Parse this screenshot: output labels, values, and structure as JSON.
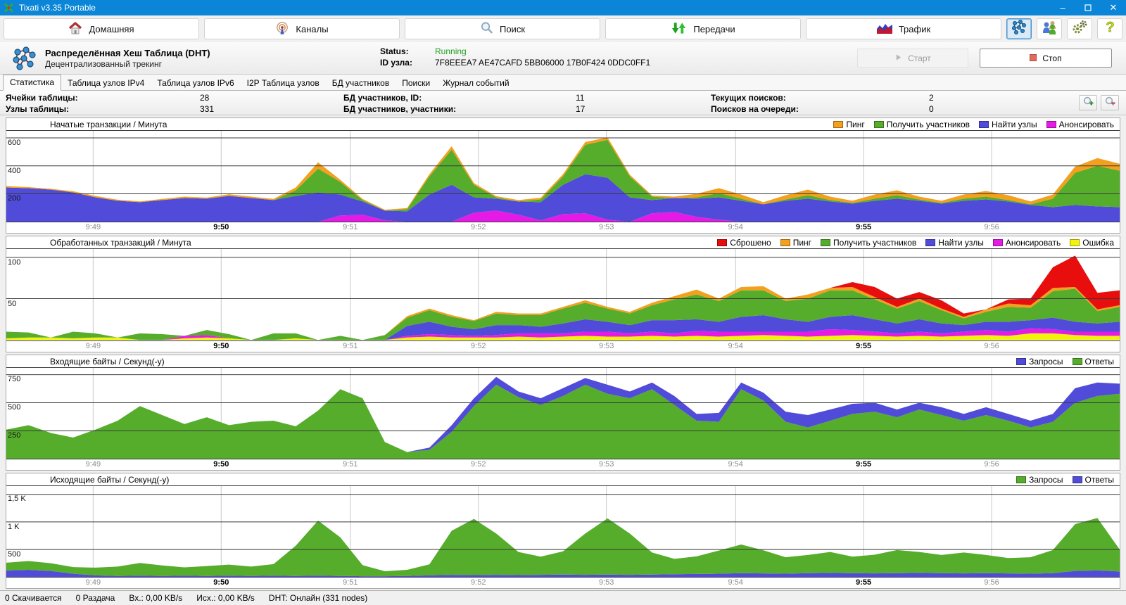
{
  "window": {
    "title": "Tixati v3.35 Portable",
    "minimize": "–",
    "close": "✕"
  },
  "toolbar": {
    "buttons": [
      {
        "label": "Домашняя",
        "icon": "home-icon"
      },
      {
        "label": "Каналы",
        "icon": "broadcast-icon"
      },
      {
        "label": "Поиск",
        "icon": "search-icon"
      },
      {
        "label": "Передачи",
        "icon": "transfer-arrows-icon"
      },
      {
        "label": "Трафик",
        "icon": "traffic-graph-icon"
      }
    ],
    "icon_buttons": [
      {
        "icon": "dht-network-icon",
        "selected": true
      },
      {
        "icon": "users-icon",
        "selected": false
      },
      {
        "icon": "settings-gears-icon",
        "selected": false
      },
      {
        "icon": "help-icon",
        "selected": false
      }
    ]
  },
  "dht_header": {
    "title": "Распределённая Хеш Таблица (DHT)",
    "subtitle": "Децентрализованный трекинг",
    "status_label": "Status:",
    "status_value": "Running",
    "status_color": "#1f9e1f",
    "node_id_label": "ID узла:",
    "node_id_value": "7F8EEEA7 AE47CAFD 5BB06000 17B0F424 0DDC0FF1",
    "start_label": "Старт",
    "stop_label": "Стоп"
  },
  "tabs": [
    {
      "label": "Статистика",
      "selected": true
    },
    {
      "label": "Таблица узлов IPv4",
      "selected": false
    },
    {
      "label": "Таблица узлов IPv6",
      "selected": false
    },
    {
      "label": "I2P Таблица узлов",
      "selected": false
    },
    {
      "label": "БД участников",
      "selected": false
    },
    {
      "label": "Поиски",
      "selected": false
    },
    {
      "label": "Журнал событий",
      "selected": false
    }
  ],
  "stats": {
    "rows": [
      {
        "cells": [
          {
            "label": "Ячейки таблицы:",
            "value": "28"
          },
          {
            "label": "БД участников, ID:",
            "value": "11"
          },
          {
            "label": "Текущих поисков:",
            "value": "2"
          }
        ]
      },
      {
        "cells": [
          {
            "label": "Узлы таблицы:",
            "value": "331"
          },
          {
            "label": "БД участников, участники:",
            "value": "17"
          },
          {
            "label": "Поисков на очереди:",
            "value": "0"
          }
        ]
      }
    ]
  },
  "time_axis": {
    "ticks": [
      {
        "pos": 78,
        "label": "9:49",
        "bold": false
      },
      {
        "pos": 193,
        "label": "9:50",
        "bold": true
      },
      {
        "pos": 309,
        "label": "9:51",
        "bold": false
      },
      {
        "pos": 424,
        "label": "9:52",
        "bold": false
      },
      {
        "pos": 539,
        "label": "9:53",
        "bold": false
      },
      {
        "pos": 655,
        "label": "9:54",
        "bold": false
      },
      {
        "pos": 770,
        "label": "9:55",
        "bold": true
      },
      {
        "pos": 885,
        "label": "9:56",
        "bold": false
      }
    ]
  },
  "chart_data": [
    {
      "type": "area",
      "title": "Начатые транзакции / Минута",
      "ymax": 650,
      "ygrid": [
        {
          "v": 600,
          "label": "600"
        },
        {
          "v": 400,
          "label": "400"
        },
        {
          "v": 200,
          "label": "200"
        }
      ],
      "series": [
        {
          "name": "Анонсировать",
          "color": "#E61AE6",
          "values": [
            0,
            0,
            0,
            0,
            0,
            0,
            0,
            0,
            0,
            0,
            0,
            0,
            0,
            0,
            0,
            45,
            50,
            10,
            0,
            0,
            0,
            65,
            80,
            50,
            10,
            55,
            60,
            15,
            0,
            60,
            70,
            35,
            15,
            0,
            0,
            0,
            0,
            0,
            0,
            0,
            0,
            0,
            0,
            0,
            0,
            0,
            0,
            0,
            0,
            0,
            0
          ]
        },
        {
          "name": "Найти узлы",
          "color": "#504CD9",
          "values": [
            245,
            240,
            230,
            210,
            175,
            150,
            140,
            155,
            170,
            165,
            185,
            170,
            155,
            185,
            210,
            150,
            95,
            70,
            75,
            195,
            265,
            110,
            85,
            95,
            130,
            210,
            280,
            300,
            175,
            95,
            100,
            130,
            160,
            150,
            125,
            150,
            165,
            145,
            130,
            150,
            165,
            150,
            130,
            150,
            160,
            145,
            120,
            105,
            120,
            110,
            105
          ]
        },
        {
          "name": "Получить участников",
          "color": "#55AD2B",
          "values": [
            0,
            0,
            0,
            0,
            0,
            0,
            0,
            0,
            0,
            0,
            0,
            0,
            0,
            40,
            170,
            90,
            10,
            0,
            15,
            130,
            250,
            90,
            10,
            0,
            20,
            60,
            210,
            270,
            150,
            25,
            0,
            10,
            30,
            15,
            0,
            10,
            25,
            10,
            5,
            15,
            25,
            10,
            5,
            15,
            20,
            10,
            5,
            60,
            230,
            290,
            260
          ]
        },
        {
          "name": "Пинг",
          "color": "#F2A01E",
          "values": [
            10,
            8,
            6,
            8,
            10,
            8,
            6,
            8,
            10,
            8,
            12,
            10,
            8,
            20,
            45,
            15,
            8,
            6,
            8,
            15,
            25,
            12,
            8,
            10,
            12,
            15,
            20,
            18,
            12,
            8,
            10,
            25,
            35,
            30,
            15,
            30,
            40,
            25,
            15,
            30,
            35,
            20,
            15,
            30,
            40,
            35,
            20,
            30,
            45,
            55,
            50
          ]
        }
      ]
    },
    {
      "type": "area",
      "title": "Обработанных транзакций / Минута",
      "ymax": 110,
      "ygrid": [
        {
          "v": 100,
          "label": "100"
        },
        {
          "v": 50,
          "label": "50"
        }
      ],
      "series": [
        {
          "name": "Ошибка",
          "color": "#F2F20C",
          "values": [
            2,
            3,
            3,
            2,
            3,
            3,
            0,
            0,
            2,
            3,
            2,
            0,
            0,
            2,
            0,
            0,
            0,
            0,
            3,
            4,
            3,
            3,
            3,
            4,
            3,
            4,
            5,
            4,
            4,
            5,
            4,
            5,
            4,
            5,
            6,
            5,
            4,
            5,
            6,
            5,
            4,
            5,
            4,
            5,
            6,
            5,
            8,
            8,
            6,
            5,
            5
          ]
        },
        {
          "name": "Анонсировать",
          "color": "#E61AE6",
          "values": [
            0,
            0,
            0,
            0,
            0,
            0,
            0,
            0,
            3,
            3,
            0,
            0,
            0,
            0,
            0,
            0,
            0,
            0,
            2,
            3,
            3,
            2,
            3,
            4,
            5,
            4,
            5,
            6,
            4,
            5,
            4,
            6,
            6,
            5,
            4,
            5,
            6,
            8,
            6,
            5,
            4,
            5,
            4,
            5,
            6,
            5,
            6,
            5,
            4,
            5,
            5
          ]
        },
        {
          "name": "Найти узлы",
          "color": "#504CD9",
          "values": [
            0,
            0,
            0,
            0,
            0,
            0,
            0,
            0,
            0,
            0,
            0,
            0,
            0,
            0,
            0,
            0,
            0,
            0,
            12,
            15,
            10,
            8,
            12,
            10,
            8,
            12,
            15,
            12,
            10,
            14,
            16,
            14,
            12,
            18,
            20,
            15,
            12,
            15,
            18,
            15,
            12,
            15,
            12,
            8,
            10,
            12,
            10,
            14,
            12,
            10,
            12
          ]
        },
        {
          "name": "Получить участников",
          "color": "#55AD2B",
          "values": [
            8,
            6,
            0,
            8,
            5,
            0,
            8,
            7,
            0,
            6,
            5,
            0,
            8,
            6,
            0,
            5,
            0,
            6,
            10,
            14,
            12,
            10,
            14,
            12,
            14,
            18,
            20,
            16,
            14,
            18,
            25,
            30,
            25,
            32,
            30,
            22,
            28,
            32,
            30,
            24,
            18,
            22,
            16,
            8,
            12,
            18,
            15,
            32,
            40,
            15,
            18
          ]
        },
        {
          "name": "Пинг",
          "color": "#F2A01E",
          "values": [
            0,
            0,
            0,
            0,
            0,
            0,
            0,
            0,
            0,
            0,
            0,
            0,
            0,
            0,
            0,
            0,
            0,
            0,
            2,
            2,
            2,
            1,
            2,
            2,
            2,
            2,
            3,
            2,
            2,
            3,
            4,
            6,
            3,
            4,
            5,
            3,
            5,
            3,
            4,
            3,
            2,
            3,
            2,
            2,
            3,
            4,
            3,
            4,
            2,
            2,
            2
          ]
        },
        {
          "name": "Сброшено",
          "color": "#E80E0E",
          "values": [
            0,
            0,
            0,
            0,
            0,
            0,
            0,
            0,
            0,
            0,
            0,
            0,
            0,
            0,
            0,
            0,
            0,
            0,
            0,
            0,
            0,
            0,
            0,
            0,
            0,
            0,
            0,
            0,
            0,
            0,
            0,
            0,
            0,
            0,
            0,
            0,
            0,
            0,
            6,
            12,
            10,
            8,
            10,
            4,
            0,
            5,
            8,
            25,
            38,
            20,
            18
          ]
        }
      ]
    },
    {
      "type": "area",
      "title": "Входящие байты / Секунд(-у)",
      "ymax": 810,
      "ygrid": [
        {
          "v": 750,
          "label": "750"
        },
        {
          "v": 500,
          "label": "500"
        },
        {
          "v": 250,
          "label": "250"
        }
      ],
      "series": [
        {
          "name": "Ответы",
          "color": "#55AD2B",
          "values": [
            260,
            300,
            230,
            190,
            260,
            340,
            470,
            390,
            310,
            370,
            300,
            330,
            340,
            290,
            430,
            620,
            540,
            150,
            60,
            80,
            240,
            470,
            660,
            550,
            480,
            560,
            660,
            580,
            540,
            620,
            480,
            340,
            330,
            620,
            520,
            330,
            280,
            340,
            400,
            420,
            370,
            440,
            390,
            340,
            390,
            340,
            280,
            330,
            500,
            560,
            580
          ]
        },
        {
          "name": "Запросы",
          "color": "#504CD9",
          "values": [
            0,
            0,
            0,
            0,
            0,
            0,
            0,
            0,
            0,
            0,
            0,
            0,
            0,
            0,
            0,
            0,
            0,
            0,
            0,
            20,
            60,
            70,
            70,
            50,
            60,
            70,
            60,
            80,
            60,
            60,
            80,
            60,
            80,
            60,
            70,
            90,
            110,
            100,
            90,
            80,
            70,
            60,
            70,
            60,
            70,
            60,
            60,
            70,
            130,
            120,
            90
          ]
        }
      ]
    },
    {
      "type": "area",
      "title": "Исходящие байты / Секунд(-у)",
      "ymax": 1650,
      "ygrid": [
        {
          "v": 1500,
          "label": "1,5 K"
        },
        {
          "v": 1000,
          "label": "1 K"
        },
        {
          "v": 500,
          "label": "500"
        }
      ],
      "series": [
        {
          "name": "Ответы",
          "color": "#504CD9",
          "values": [
            120,
            130,
            110,
            60,
            30,
            20,
            25,
            20,
            25,
            20,
            25,
            20,
            25,
            20,
            25,
            20,
            15,
            15,
            20,
            30,
            40,
            35,
            40,
            35,
            40,
            45,
            40,
            45,
            40,
            45,
            50,
            55,
            60,
            70,
            65,
            60,
            70,
            75,
            70,
            65,
            70,
            75,
            70,
            65,
            70,
            65,
            60,
            70,
            110,
            120,
            100
          ]
        },
        {
          "name": "Запросы",
          "color": "#55AD2B",
          "values": [
            140,
            160,
            140,
            120,
            140,
            170,
            230,
            190,
            150,
            180,
            200,
            170,
            210,
            550,
            1000,
            700,
            200,
            90,
            110,
            200,
            800,
            1020,
            750,
            420,
            330,
            420,
            750,
            1020,
            750,
            400,
            280,
            320,
            420,
            520,
            420,
            300,
            330,
            380,
            300,
            340,
            420,
            380,
            330,
            380,
            330,
            280,
            300,
            420,
            850,
            950,
            400
          ]
        }
      ]
    }
  ],
  "statusbar": {
    "items": [
      "0 Скачивается",
      "0 Раздача",
      "Вх.: 0,00 KB/s",
      "Исх.: 0,00 KB/s",
      "DHT: Онлайн (331 nodes)"
    ]
  }
}
